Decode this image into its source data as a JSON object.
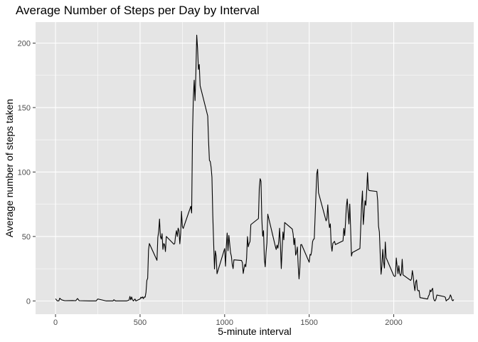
{
  "chart_data": {
    "type": "line",
    "title": "Average Number of Steps per Day by Interval",
    "xlabel": "5-minute interval",
    "ylabel": "Average number of steps taken",
    "xlim": [
      -118,
      2473
    ],
    "ylim": [
      -10.3,
      216.3
    ],
    "x_ticks": [
      0,
      500,
      1000,
      1500,
      2000
    ],
    "y_ticks": [
      0,
      50,
      100,
      150,
      200
    ],
    "grid": true,
    "panel_background": "#e5e5e5",
    "grid_color": "#ffffff",
    "line_color": "#000000",
    "series": [
      {
        "points": [
          [
            0,
            1.7
          ],
          [
            10,
            0.1
          ],
          [
            20,
            0.1
          ],
          [
            25,
            2.1
          ],
          [
            35,
            0.9
          ],
          [
            45,
            0.5
          ],
          [
            55,
            0.2
          ],
          [
            100,
            0.3
          ],
          [
            120,
            0.2
          ],
          [
            130,
            1.9
          ],
          [
            140,
            0.2
          ],
          [
            200,
            0
          ],
          [
            240,
            0
          ],
          [
            250,
            1.5
          ],
          [
            300,
            0
          ],
          [
            340,
            0
          ],
          [
            345,
            0.9
          ],
          [
            355,
            0
          ],
          [
            420,
            0
          ],
          [
            435,
            0.7
          ],
          [
            440,
            3.5
          ],
          [
            445,
            0.8
          ],
          [
            450,
            3.1
          ],
          [
            455,
            1.1
          ],
          [
            460,
            0
          ],
          [
            470,
            1.5
          ],
          [
            475,
            0
          ],
          [
            500,
            1.5
          ],
          [
            505,
            2.9
          ],
          [
            510,
            2.2
          ],
          [
            515,
            3.1
          ],
          [
            520,
            1.8
          ],
          [
            525,
            3.1
          ],
          [
            530,
            2.9
          ],
          [
            535,
            6.7
          ],
          [
            540,
            15.9
          ],
          [
            545,
            17.6
          ],
          [
            550,
            39.5
          ],
          [
            555,
            44.5
          ],
          [
            600,
            31.5
          ],
          [
            605,
            49.3
          ],
          [
            610,
            53.8
          ],
          [
            615,
            63.5
          ],
          [
            620,
            50
          ],
          [
            625,
            48
          ],
          [
            630,
            52.2
          ],
          [
            635,
            40
          ],
          [
            640,
            44.5
          ],
          [
            645,
            43.6
          ],
          [
            650,
            38.3
          ],
          [
            655,
            50
          ],
          [
            700,
            44
          ],
          [
            705,
            44.6
          ],
          [
            710,
            50.8
          ],
          [
            715,
            54.5
          ],
          [
            720,
            50
          ],
          [
            725,
            56.5
          ],
          [
            730,
            54.5
          ],
          [
            735,
            44.3
          ],
          [
            740,
            52.3
          ],
          [
            745,
            69.5
          ],
          [
            750,
            57.8
          ],
          [
            755,
            56.2
          ],
          [
            800,
            73.4
          ],
          [
            805,
            68.2
          ],
          [
            810,
            129.4
          ],
          [
            815,
            157.5
          ],
          [
            820,
            171.2
          ],
          [
            825,
            155.4
          ],
          [
            830,
            177.3
          ],
          [
            835,
            206.2
          ],
          [
            840,
            195.9
          ],
          [
            845,
            179.6
          ],
          [
            850,
            183.4
          ],
          [
            855,
            167
          ],
          [
            900,
            143.5
          ],
          [
            905,
            124
          ],
          [
            910,
            109.1
          ],
          [
            915,
            108.1
          ],
          [
            920,
            103.7
          ],
          [
            925,
            95.9
          ],
          [
            930,
            66.2
          ],
          [
            935,
            45.2
          ],
          [
            940,
            24.8
          ],
          [
            945,
            38.8
          ],
          [
            950,
            34.9
          ],
          [
            955,
            21.1
          ],
          [
            1000,
            40.6
          ],
          [
            1005,
            26.9
          ],
          [
            1010,
            42.4
          ],
          [
            1015,
            52.7
          ],
          [
            1020,
            38.9
          ],
          [
            1025,
            50.8
          ],
          [
            1030,
            44.3
          ],
          [
            1035,
            37.4
          ],
          [
            1040,
            34.7
          ],
          [
            1045,
            28.3
          ],
          [
            1050,
            25.1
          ],
          [
            1055,
            31.9
          ],
          [
            1100,
            31.4
          ],
          [
            1105,
            29.7
          ],
          [
            1110,
            21.3
          ],
          [
            1115,
            25.5
          ],
          [
            1120,
            28.4
          ],
          [
            1125,
            26.5
          ],
          [
            1130,
            33.4
          ],
          [
            1135,
            49.9
          ],
          [
            1140,
            42
          ],
          [
            1145,
            44.6
          ],
          [
            1150,
            46
          ],
          [
            1155,
            59.2
          ],
          [
            1200,
            63.9
          ],
          [
            1205,
            87.7
          ],
          [
            1210,
            94.8
          ],
          [
            1215,
            92.8
          ],
          [
            1220,
            63.4
          ],
          [
            1225,
            50.2
          ],
          [
            1230,
            54.5
          ],
          [
            1235,
            32.4
          ],
          [
            1240,
            26.5
          ],
          [
            1245,
            37.7
          ],
          [
            1250,
            45.1
          ],
          [
            1255,
            67.3
          ],
          [
            1300,
            42.3
          ],
          [
            1305,
            39.9
          ],
          [
            1310,
            43.3
          ],
          [
            1315,
            40.9
          ],
          [
            1320,
            46.2
          ],
          [
            1325,
            56.4
          ],
          [
            1330,
            42.8
          ],
          [
            1335,
            25.1
          ],
          [
            1340,
            39.9
          ],
          [
            1345,
            53.5
          ],
          [
            1350,
            47.4
          ],
          [
            1355,
            60.8
          ],
          [
            1400,
            55.8
          ],
          [
            1405,
            51.9
          ],
          [
            1410,
            43.6
          ],
          [
            1415,
            48.7
          ],
          [
            1420,
            35.5
          ],
          [
            1425,
            37.5
          ],
          [
            1430,
            41.8
          ],
          [
            1435,
            27.5
          ],
          [
            1440,
            17.1
          ],
          [
            1445,
            26.1
          ],
          [
            1450,
            43.6
          ],
          [
            1455,
            43.8
          ],
          [
            1500,
            30
          ],
          [
            1505,
            36.1
          ],
          [
            1510,
            35.5
          ],
          [
            1515,
            38.8
          ],
          [
            1520,
            45.96
          ],
          [
            1525,
            47.8
          ],
          [
            1530,
            48.1
          ],
          [
            1535,
            65.3
          ],
          [
            1540,
            82.9
          ],
          [
            1545,
            98.7
          ],
          [
            1550,
            102.1
          ],
          [
            1555,
            84
          ],
          [
            1600,
            62.1
          ],
          [
            1605,
            64.1
          ],
          [
            1610,
            74.5
          ],
          [
            1615,
            63.2
          ],
          [
            1620,
            56.9
          ],
          [
            1625,
            59.8
          ],
          [
            1630,
            43.9
          ],
          [
            1635,
            38.6
          ],
          [
            1640,
            44.7
          ],
          [
            1645,
            45.5
          ],
          [
            1650,
            46.2
          ],
          [
            1655,
            43.7
          ],
          [
            1700,
            46.6
          ],
          [
            1705,
            56.3
          ],
          [
            1710,
            50.7
          ],
          [
            1715,
            61.2
          ],
          [
            1720,
            73.4
          ],
          [
            1725,
            79.1
          ],
          [
            1730,
            68.9
          ],
          [
            1735,
            59.7
          ],
          [
            1740,
            75.1
          ],
          [
            1745,
            56.5
          ],
          [
            1750,
            34.8
          ],
          [
            1755,
            37.5
          ],
          [
            1800,
            40.7
          ],
          [
            1805,
            58
          ],
          [
            1810,
            74.7
          ],
          [
            1815,
            85.3
          ],
          [
            1820,
            59.3
          ],
          [
            1825,
            67.8
          ],
          [
            1830,
            77.7
          ],
          [
            1835,
            74.2
          ],
          [
            1840,
            85.3
          ],
          [
            1845,
            99.5
          ],
          [
            1850,
            86.6
          ],
          [
            1855,
            85.6
          ],
          [
            1900,
            84.9
          ],
          [
            1905,
            77.8
          ],
          [
            1910,
            58
          ],
          [
            1915,
            53.4
          ],
          [
            1920,
            36.3
          ],
          [
            1925,
            20.7
          ],
          [
            1930,
            27.4
          ],
          [
            1935,
            40
          ],
          [
            1940,
            30.2
          ],
          [
            1945,
            25.5
          ],
          [
            1950,
            45.7
          ],
          [
            1955,
            33.5
          ],
          [
            2000,
            19.6
          ],
          [
            2005,
            19
          ],
          [
            2010,
            19.3
          ],
          [
            2015,
            33.3
          ],
          [
            2020,
            26.8
          ],
          [
            2025,
            21.2
          ],
          [
            2030,
            27.3
          ],
          [
            2035,
            21.3
          ],
          [
            2040,
            19.5
          ],
          [
            2045,
            21.3
          ],
          [
            2050,
            32.3
          ],
          [
            2055,
            20.2
          ],
          [
            2100,
            15.9
          ],
          [
            2105,
            17.2
          ],
          [
            2110,
            23.5
          ],
          [
            2115,
            19.2
          ],
          [
            2120,
            12.5
          ],
          [
            2125,
            8
          ],
          [
            2130,
            14.7
          ],
          [
            2135,
            16.3
          ],
          [
            2140,
            8.7
          ],
          [
            2145,
            7.8
          ],
          [
            2150,
            8.1
          ],
          [
            2155,
            2.6
          ],
          [
            2200,
            1.5
          ],
          [
            2205,
            3.7
          ],
          [
            2210,
            4.8
          ],
          [
            2215,
            8.5
          ],
          [
            2220,
            7.1
          ],
          [
            2225,
            8.7
          ],
          [
            2230,
            9.8
          ],
          [
            2235,
            2.2
          ],
          [
            2240,
            0.3
          ],
          [
            2245,
            0.1
          ],
          [
            2250,
            1.6
          ],
          [
            2255,
            4.6
          ],
          [
            2300,
            3.3
          ],
          [
            2305,
            2.8
          ],
          [
            2310,
            0
          ],
          [
            2315,
            0.8
          ],
          [
            2320,
            1
          ],
          [
            2325,
            1.6
          ],
          [
            2330,
            2.6
          ],
          [
            2335,
            4.7
          ],
          [
            2340,
            3.3
          ],
          [
            2345,
            0.6
          ],
          [
            2350,
            0.2
          ],
          [
            2355,
            1.1
          ]
        ]
      }
    ]
  }
}
